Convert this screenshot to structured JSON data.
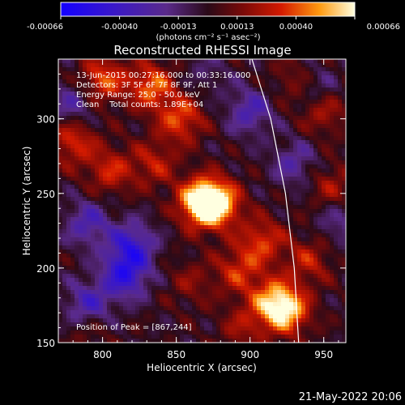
{
  "chart_data": {
    "type": "heatmap",
    "title": "Reconstructed RHESSI Image",
    "xlabel": "Heliocentric X (arcsec)",
    "ylabel": "Heliocentric Y (arcsec)",
    "xlim": [
      770,
      965
    ],
    "ylim": [
      150,
      340
    ],
    "xticks": [
      800,
      850,
      900,
      950
    ],
    "yticks": [
      150,
      200,
      250,
      300
    ],
    "colorbar": {
      "ticks": [
        "-0.00066",
        "-0.00040",
        "-0.00013",
        "0.00013",
        "0.00040",
        "0.00066"
      ],
      "unit_label": "(photons cm⁻² s⁻¹ asec⁻²)",
      "range": [
        -0.00066,
        0.00066
      ]
    },
    "annotations": [
      "13-Jun-2015 00:27:16.000 to 00:33:16.000",
      "Detectors: 3F 5F 6F 7F 8F 9F, Att 1",
      "Energy Range: 25.0 - 50.0 keV",
      "Clean    Total counts: 1.89E+04"
    ],
    "peak_label": "Position of Peak = [867,244]",
    "peak": [
      867,
      244
    ],
    "sources": [
      {
        "x": 867,
        "y": 244,
        "value": 0.00066
      },
      {
        "x": 878,
        "y": 243,
        "value": 0.00052
      },
      {
        "x": 925,
        "y": 171,
        "value": 0.0005
      },
      {
        "x": 915,
        "y": 178,
        "value": 0.0004
      },
      {
        "x": 800,
        "y": 326,
        "value": 0.0004
      },
      {
        "x": 833,
        "y": 322,
        "value": 0.00042
      },
      {
        "x": 853,
        "y": 300,
        "value": 0.00038
      },
      {
        "x": 780,
        "y": 285,
        "value": 0.00034
      },
      {
        "x": 805,
        "y": 265,
        "value": 0.0003
      },
      {
        "x": 835,
        "y": 270,
        "value": 0.00026
      },
      {
        "x": 908,
        "y": 218,
        "value": 0.00034
      },
      {
        "x": 940,
        "y": 205,
        "value": 0.00026
      },
      {
        "x": 892,
        "y": 198,
        "value": 0.0003
      },
      {
        "x": 950,
        "y": 305,
        "value": 0.00026
      },
      {
        "x": 955,
        "y": 255,
        "value": 0.00022
      },
      {
        "x": 930,
        "y": 325,
        "value": 0.00018
      },
      {
        "x": 860,
        "y": 190,
        "value": 0.00016
      },
      {
        "x": 790,
        "y": 160,
        "value": 0.00014
      },
      {
        "x": 895,
        "y": 160,
        "value": 0.0002
      },
      {
        "x": 820,
        "y": 215,
        "value": -0.0004
      },
      {
        "x": 815,
        "y": 195,
        "value": -0.00044
      },
      {
        "x": 790,
        "y": 175,
        "value": -0.00035
      },
      {
        "x": 790,
        "y": 230,
        "value": -0.0003
      },
      {
        "x": 780,
        "y": 310,
        "value": -0.00025
      },
      {
        "x": 900,
        "y": 305,
        "value": -0.0003
      },
      {
        "x": 930,
        "y": 270,
        "value": -0.00024
      },
      {
        "x": 945,
        "y": 320,
        "value": -0.0002
      },
      {
        "x": 960,
        "y": 230,
        "value": -0.00018
      },
      {
        "x": 870,
        "y": 330,
        "value": -0.00012
      }
    ],
    "limb_curve": [
      [
        900,
        344
      ],
      [
        914,
        300
      ],
      [
        924,
        250
      ],
      [
        930,
        200
      ],
      [
        933,
        150
      ]
    ]
  },
  "footer_date": "21-May-2022 20:06"
}
